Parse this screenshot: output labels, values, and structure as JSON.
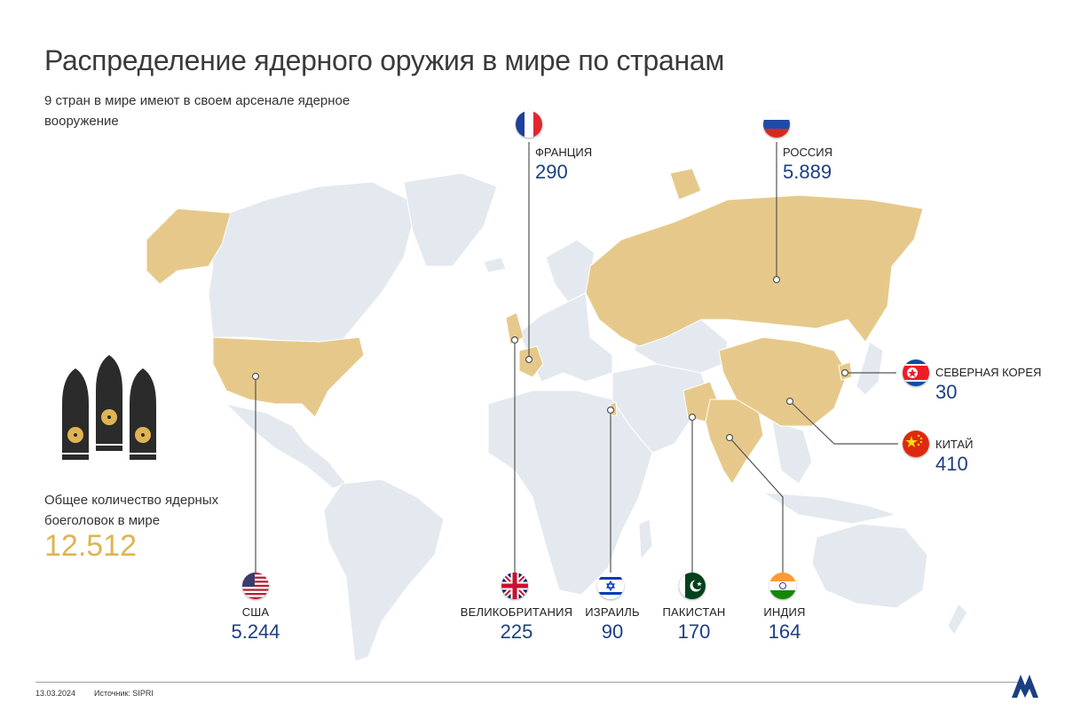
{
  "title": "Распределение ядерного оружия в мире по странам",
  "subtitle": "9 стран в мире имеют в своем арсенале ядерное вооружение",
  "total": {
    "caption": "Общее количество ядерных боеголовок в мире",
    "value": "12.512"
  },
  "countries": {
    "france": {
      "name": "ФРАНЦИЯ",
      "value": "290",
      "flag": "france-flag"
    },
    "russia": {
      "name": "РОССИЯ",
      "value": "5.889",
      "flag": "russia-flag"
    },
    "north_korea": {
      "name": "СЕВЕРНАЯ КОРЕЯ",
      "value": "30",
      "flag": "north-korea-flag"
    },
    "china": {
      "name": "КИТАЙ",
      "value": "410",
      "flag": "china-flag"
    },
    "usa": {
      "name": "США",
      "value": "5.244",
      "flag": "usa-flag"
    },
    "uk": {
      "name": "ВЕЛИКОБРИТАНИЯ",
      "value": "225",
      "flag": "uk-flag"
    },
    "israel": {
      "name": "ИЗРАИЛЬ",
      "value": "90",
      "flag": "israel-flag"
    },
    "pakistan": {
      "name": "ПАКИСТАН",
      "value": "170",
      "flag": "pakistan-flag"
    },
    "india": {
      "name": "ИНДИЯ",
      "value": "164",
      "flag": "india-flag"
    }
  },
  "footer": {
    "date": "13.03.2024",
    "source": "Источник: SIPRI"
  },
  "colors": {
    "nuclear_country": "#e6c98a",
    "land": "#e4e9ef",
    "value_text": "#1c3f82",
    "total_value": "#e0b453",
    "leader_line": "#555555"
  }
}
